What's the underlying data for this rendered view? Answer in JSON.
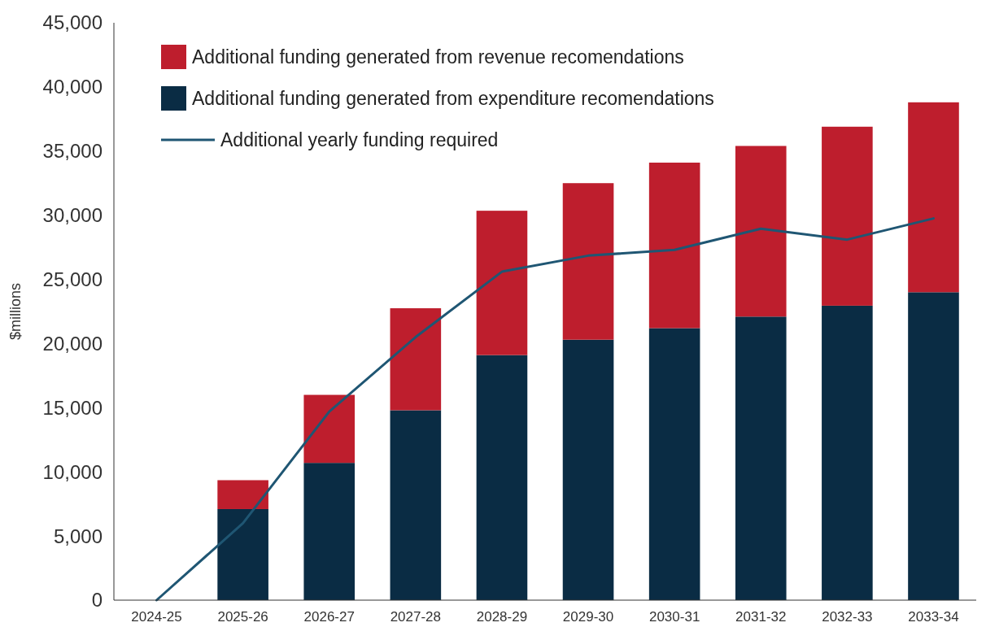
{
  "chart_data": {
    "type": "bar",
    "stacked": true,
    "ylabel": "$millions",
    "categories": [
      "2024-25",
      "2025-26",
      "2026-27",
      "2027-28",
      "2028-29",
      "2029-30",
      "2030-31",
      "2031-32",
      "2032-33",
      "2033-34"
    ],
    "series": [
      {
        "name": "Additional funding generated from expenditure recomendations",
        "color": "#0a2c44",
        "values": [
          0,
          7100,
          10700,
          14800,
          19100,
          20300,
          21200,
          22100,
          22950,
          24000
        ]
      },
      {
        "name": "Additional funding generated from revenue recomendations",
        "color": "#be1e2d",
        "values": [
          0,
          2250,
          5300,
          7950,
          11250,
          12200,
          12900,
          13300,
          13950,
          14800
        ]
      },
      {
        "name": "Additional yearly funding required",
        "type": "line",
        "color": "#1f5673",
        "values": [
          0,
          6000,
          14700,
          20500,
          25600,
          26850,
          27300,
          28950,
          28100,
          29750
        ]
      }
    ],
    "ylim": [
      0,
      45000
    ],
    "yticks": [
      {
        "value": 0,
        "label": "0"
      },
      {
        "value": 5000,
        "label": "5,000"
      },
      {
        "value": 10000,
        "label": "10,000"
      },
      {
        "value": 15000,
        "label": "15,000"
      },
      {
        "value": 20000,
        "label": "20,000"
      },
      {
        "value": 25000,
        "label": "25,000"
      },
      {
        "value": 30000,
        "label": "30,000"
      },
      {
        "value": 35000,
        "label": "35,000"
      },
      {
        "value": 40000,
        "label": "40,000"
      },
      {
        "value": 45000,
        "label": "45,000"
      }
    ],
    "legend": "top left",
    "grid": false,
    "line_style": "solid",
    "marker": "none"
  }
}
